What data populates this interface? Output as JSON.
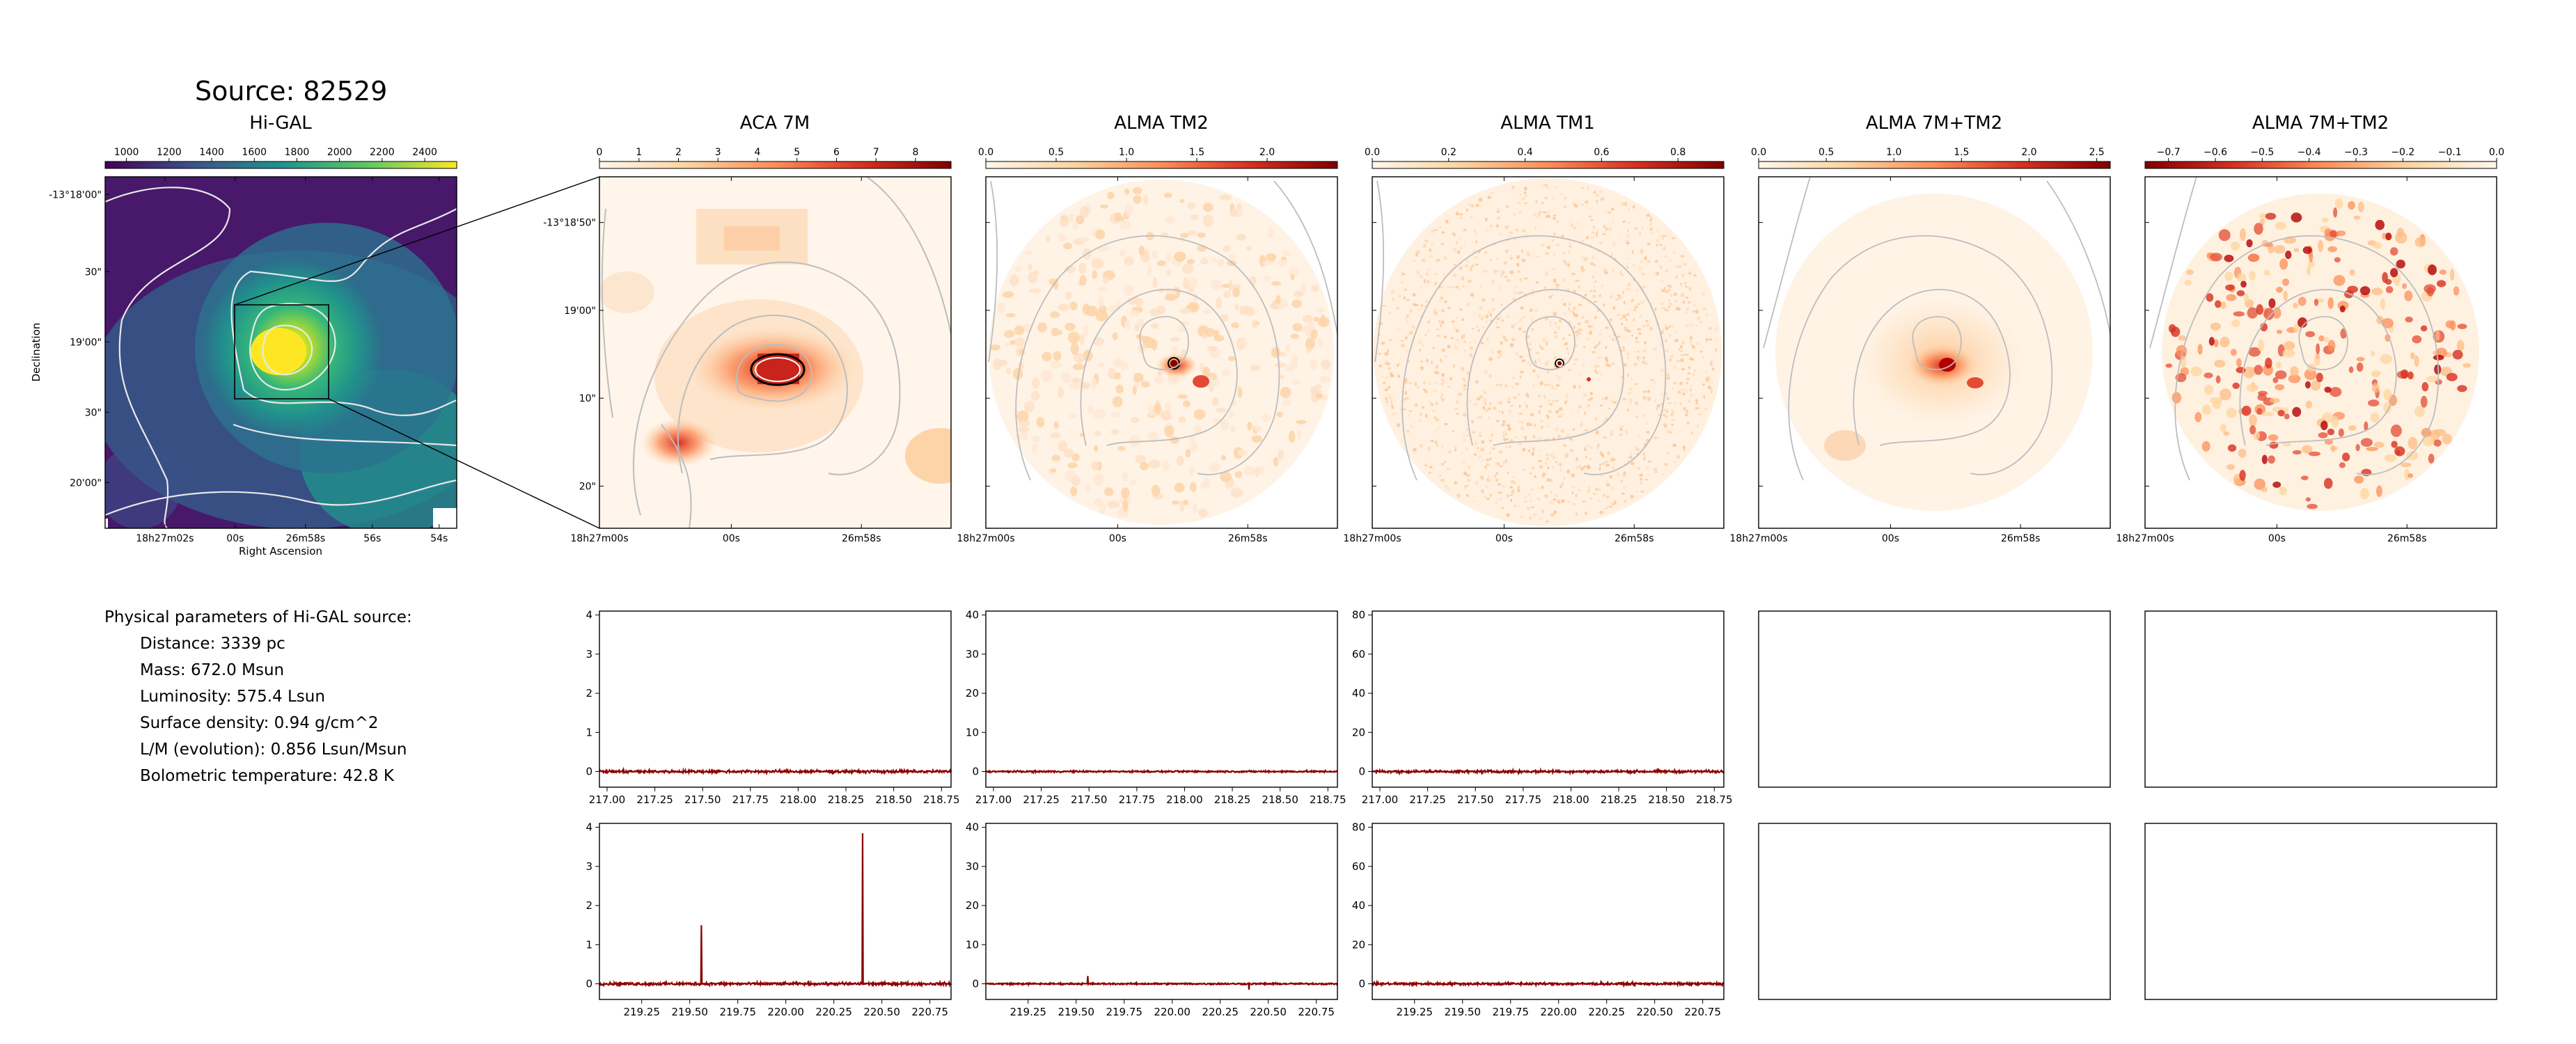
{
  "source_title": "Source: 82529",
  "params": {
    "heading": "Physical parameters of Hi-GAL source:",
    "rows": [
      "Distance: 3339 pc",
      "Mass: 672.0 Msun",
      "Luminosity: 575.4 Lsun",
      "Surface density: 0.94 g/cm^2",
      "L/M (evolution): 0.856 Lsun/Msun",
      "Bolometric temperature: 42.8 K"
    ]
  },
  "colors": {
    "spectrum_line": "#8b0000",
    "contour_main": "#dddddd",
    "contour_zoom": "#b8b8b8",
    "frame": "#000000"
  },
  "chart_data": [
    {
      "type": "heatmap",
      "title": "Hi-GAL",
      "colormap": "viridis",
      "colorbar": {
        "ticks": [
          "1000",
          "1200",
          "1400",
          "1600",
          "1800",
          "2000",
          "2200",
          "2400"
        ],
        "range": [
          900,
          2550
        ]
      },
      "xlabel": "Right Ascension",
      "ylabel": "Declination",
      "xticks": [
        "18h27m02s",
        "00s",
        "26m58s",
        "56s",
        "54s"
      ],
      "yticks": [
        "-13°18'00\"",
        "30\"",
        "19'00\"",
        "30\"",
        "20'00\""
      ]
    },
    {
      "type": "heatmap",
      "title": "ACA 7M",
      "colormap": "OrRd",
      "colorbar": {
        "ticks": [
          "0",
          "1",
          "2",
          "3",
          "4",
          "5",
          "6",
          "7",
          "8"
        ],
        "range": [
          0,
          8.9
        ]
      },
      "xticks": [
        "18h27m00s",
        "00s",
        "26m58s"
      ],
      "yticks": [
        "-13°18'50\"",
        "19'00\"",
        "10\"",
        "20\""
      ]
    },
    {
      "type": "heatmap",
      "title": "ALMA TM2",
      "colormap": "OrRd",
      "colorbar": {
        "ticks": [
          "0.0",
          "0.5",
          "1.0",
          "1.5",
          "2.0"
        ],
        "range": [
          0,
          2.5
        ]
      },
      "xticks": [
        "18h27m00s",
        "00s",
        "26m58s"
      ]
    },
    {
      "type": "heatmap",
      "title": "ALMA TM1",
      "colormap": "OrRd",
      "colorbar": {
        "ticks": [
          "0.0",
          "0.2",
          "0.4",
          "0.6",
          "0.8"
        ],
        "range": [
          0,
          0.92
        ]
      },
      "xticks": [
        "18h27m00s",
        "00s",
        "26m58s"
      ]
    },
    {
      "type": "heatmap",
      "title": "ALMA 7M+TM2",
      "colormap": "OrRd",
      "colorbar": {
        "ticks": [
          "0.0",
          "0.5",
          "1.0",
          "1.5",
          "2.0",
          "2.5"
        ],
        "range": [
          0,
          2.6
        ]
      },
      "xticks": [
        "18h27m00s",
        "00s",
        "26m58s"
      ]
    },
    {
      "type": "heatmap",
      "title": "ALMA 7M+TM2",
      "colormap": "OrRd_r",
      "colorbar": {
        "ticks": [
          "−0.7",
          "−0.6",
          "−0.5",
          "−0.4",
          "−0.3",
          "−0.2",
          "−0.1",
          "0.0"
        ],
        "range": [
          -0.75,
          0
        ]
      },
      "xticks": [
        "18h27m00s",
        "00s",
        "26m58s"
      ]
    },
    {
      "type": "line",
      "xlim": [
        216.96,
        218.8
      ],
      "ylim": [
        -0.4,
        4.1
      ],
      "xticks": [
        "217.00",
        "217.25",
        "217.50",
        "217.75",
        "218.00",
        "218.25",
        "218.50",
        "218.75"
      ],
      "yticks": [
        "0",
        "1",
        "2",
        "3",
        "4"
      ],
      "series": [
        {
          "noise": 0.05,
          "peaks": []
        }
      ]
    },
    {
      "type": "line",
      "xlim": [
        216.96,
        218.8
      ],
      "ylim": [
        -4,
        41
      ],
      "xticks": [
        "217.00",
        "217.25",
        "217.50",
        "217.75",
        "218.00",
        "218.25",
        "218.50",
        "218.75"
      ],
      "yticks": [
        "0",
        "10",
        "20",
        "30",
        "40"
      ],
      "series": [
        {
          "noise": 0.3,
          "peaks": []
        }
      ]
    },
    {
      "type": "line",
      "xlim": [
        216.96,
        218.8
      ],
      "ylim": [
        -8,
        82
      ],
      "xticks": [
        "217.00",
        "217.25",
        "217.50",
        "217.75",
        "218.00",
        "218.25",
        "218.50",
        "218.75"
      ],
      "yticks": [
        "0",
        "20",
        "40",
        "60",
        "80"
      ],
      "series": [
        {
          "noise": 0.9,
          "peaks": []
        }
      ]
    },
    {
      "type": "line",
      "xlim": [
        219.03,
        220.86
      ],
      "ylim": [
        -0.4,
        4.1
      ],
      "xticks": [
        "219.25",
        "219.50",
        "219.75",
        "220.00",
        "220.25",
        "220.50",
        "220.75"
      ],
      "yticks": [
        "0",
        "1",
        "2",
        "3",
        "4"
      ],
      "series": [
        {
          "noise": 0.05,
          "peaks": [
            [
              219.56,
              1.5
            ],
            [
              220.4,
              3.85
            ]
          ]
        }
      ]
    },
    {
      "type": "line",
      "xlim": [
        219.03,
        220.86
      ],
      "ylim": [
        -4,
        41
      ],
      "xticks": [
        "219.25",
        "219.50",
        "219.75",
        "220.00",
        "220.25",
        "220.50",
        "220.75"
      ],
      "yticks": [
        "0",
        "10",
        "20",
        "30",
        "40"
      ],
      "series": [
        {
          "noise": 0.3,
          "peaks": [
            [
              219.56,
              2.0
            ],
            [
              220.4,
              -1.5
            ]
          ]
        }
      ]
    },
    {
      "type": "line",
      "xlim": [
        219.03,
        220.86
      ],
      "ylim": [
        -8,
        82
      ],
      "xticks": [
        "219.25",
        "219.50",
        "219.75",
        "220.00",
        "220.25",
        "220.50",
        "220.75"
      ],
      "yticks": [
        "0",
        "20",
        "40",
        "60",
        "80"
      ],
      "series": [
        {
          "noise": 0.9,
          "peaks": []
        }
      ]
    }
  ]
}
